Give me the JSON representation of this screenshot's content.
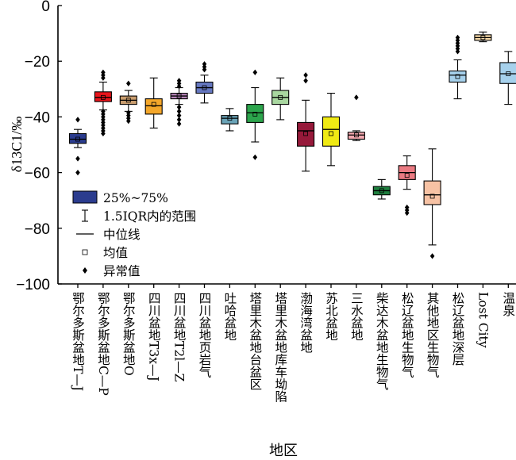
{
  "chart_data": {
    "type": "box",
    "xlabel": "地区",
    "ylabel": "δ13C1/‰",
    "ylim": [
      -100,
      0
    ],
    "yticks": [
      0,
      -20,
      -40,
      -60,
      -80,
      -100
    ],
    "categories": [
      {
        "label": "鄂尔多斯盆地T—J",
        "color": "#2b3c8e",
        "q1": -49.5,
        "median": -48,
        "q3": -46,
        "whisker_low": -51,
        "whisker_high": -44.5,
        "mean": -48,
        "outliers": [
          -41,
          -55,
          -60
        ]
      },
      {
        "label": "鄂尔多斯盆地C—P",
        "color": "#e8141b",
        "q1": -34.5,
        "median": -33,
        "q3": -31,
        "whisker_low": -37.5,
        "whisker_high": -27.5,
        "mean": -33,
        "outliers": [
          -24,
          -25,
          -26,
          -38,
          -39,
          -40,
          -41,
          -42,
          -43,
          -44,
          -45,
          -46
        ]
      },
      {
        "label": "鄂尔多斯盆地O",
        "color": "#c99d6e",
        "q1": -35.5,
        "median": -34,
        "q3": -32.5,
        "whisker_low": -38,
        "whisker_high": -30.5,
        "mean": -34,
        "outliers": [
          -28,
          -38.5,
          -39.5,
          -40.5,
          -41.5
        ]
      },
      {
        "label": "四川盆地T3x—J",
        "color": "#f4a72a",
        "q1": -39,
        "median": -36,
        "q3": -33.5,
        "whisker_low": -44,
        "whisker_high": -26,
        "mean": -35.5,
        "outliers": []
      },
      {
        "label": "四川盆地T2l—Z",
        "color": "#b584b8",
        "q1": -33.5,
        "median": -32.5,
        "q3": -31.5,
        "whisker_low": -35.5,
        "whisker_high": -29.5,
        "mean": -32.5,
        "outliers": [
          -27,
          -28,
          -29,
          -36.5,
          -38,
          -39.5,
          -41,
          -42.5
        ]
      },
      {
        "label": "四川盆地页岩气",
        "color": "#6678c1",
        "q1": -31.5,
        "median": -29.5,
        "q3": -27.5,
        "whisker_low": -35,
        "whisker_high": -25,
        "mean": -29.5,
        "outliers": [
          -21,
          -22,
          -23
        ]
      },
      {
        "label": "吐哈盆地",
        "color": "#6aa4b8",
        "q1": -42.5,
        "median": -40.5,
        "q3": -39.5,
        "whisker_low": -45,
        "whisker_high": -37,
        "mean": -40.5,
        "outliers": []
      },
      {
        "label": "塔里木盆地台盆区",
        "color": "#2ca54c",
        "q1": -42,
        "median": -38.5,
        "q3": -35.5,
        "whisker_low": -49,
        "whisker_high": -29.5,
        "mean": -39,
        "outliers": [
          -24,
          -54.5
        ]
      },
      {
        "label": "塔里木盆地库车坳陷",
        "color": "#a9d7a0",
        "q1": -35.5,
        "median": -33,
        "q3": -30.5,
        "whisker_low": -41,
        "whisker_high": -26,
        "mean": -33,
        "outliers": []
      },
      {
        "label": "渤海湾盆地",
        "color": "#96193a",
        "q1": -50.5,
        "median": -45,
        "q3": -42,
        "whisker_low": -59.5,
        "whisker_high": -34,
        "mean": -46,
        "outliers": [
          -25,
          -27
        ]
      },
      {
        "label": "苏北盆地",
        "color": "#f0ea14",
        "q1": -50.5,
        "median": -44.5,
        "q3": -40,
        "whisker_low": -57.5,
        "whisker_high": -31.5,
        "mean": -46,
        "outliers": []
      },
      {
        "label": "三水盆地",
        "color": "#f2a7ae",
        "q1": -48,
        "median": -46.5,
        "q3": -45.5,
        "whisker_low": -48.5,
        "whisker_high": -45,
        "mean": -46.5,
        "outliers": [
          -33
        ]
      },
      {
        "label": "柴达木盆地生物气",
        "color": "#1e7f3e",
        "q1": -68,
        "median": -66.5,
        "q3": -65,
        "whisker_low": -69.5,
        "whisker_high": -62.5,
        "mean": -66.5,
        "outliers": []
      },
      {
        "label": "松辽盆地生物气",
        "color": "#ea7a82",
        "q1": -62.5,
        "median": -60,
        "q3": -57.5,
        "whisker_low": -66,
        "whisker_high": -54,
        "mean": -61,
        "outliers": [
          -72.5,
          -73.5,
          -74.5
        ]
      },
      {
        "label": "其他地区生物气",
        "color": "#f7c2a4",
        "q1": -71.5,
        "median": -68,
        "q3": -63,
        "whisker_low": -86,
        "whisker_high": -51.5,
        "mean": -68.5,
        "outliers": [
          -90
        ]
      },
      {
        "label": "松辽盆地深层",
        "color": "#a6d1ec",
        "q1": -27.5,
        "median": -25,
        "q3": -23.5,
        "whisker_low": -33.5,
        "whisker_high": -19.5,
        "mean": -25.5,
        "outliers": [
          -11.5,
          -12.5,
          -13.5,
          -14.5,
          -15.5,
          -16.5
        ]
      },
      {
        "label": "Lost City",
        "color": "#f5d9a8",
        "q1": -12.5,
        "median": -11.5,
        "q3": -10.5,
        "whisker_low": -13,
        "whisker_high": -9.5,
        "mean": -11.5,
        "outliers": []
      },
      {
        "label": "温泉",
        "color": "#a6d1ec",
        "q1": -28,
        "median": -24.5,
        "q3": -20.5,
        "whisker_low": -35.5,
        "whisker_high": -16.5,
        "mean": -24.5,
        "outliers": []
      }
    ],
    "legend": [
      {
        "label": "25%~75%",
        "symbol": "box",
        "color": "#2b3c8e"
      },
      {
        "label": "1.5IQR内的范围",
        "symbol": "whisker"
      },
      {
        "label": "中位线",
        "symbol": "line"
      },
      {
        "label": "均值",
        "symbol": "square"
      },
      {
        "label": "异常值",
        "symbol": "diamond"
      }
    ]
  }
}
